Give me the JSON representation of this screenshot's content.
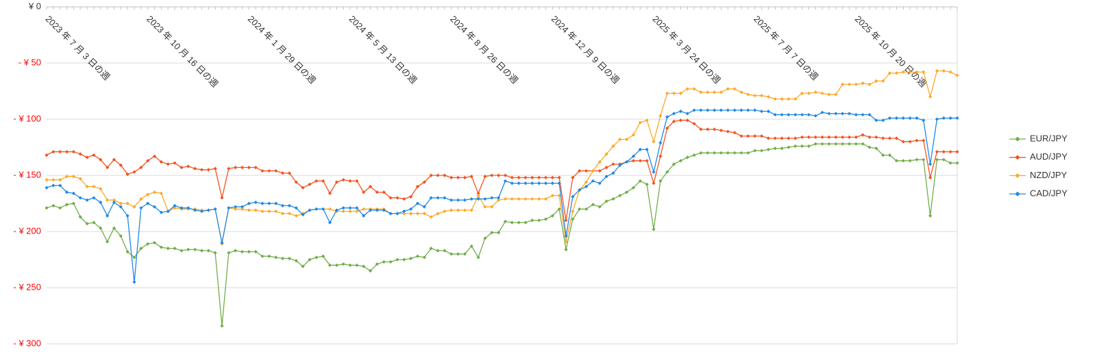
{
  "chart_data": {
    "type": "line",
    "categories": [
      "2023 年 7 月 3 日の週",
      null,
      null,
      null,
      null,
      null,
      null,
      null,
      null,
      null,
      null,
      null,
      null,
      null,
      null,
      "2023 年 10 月 16 日の週",
      null,
      null,
      null,
      null,
      null,
      null,
      null,
      null,
      null,
      null,
      null,
      null,
      null,
      null,
      "2024 年 1 月 29 日の週",
      null,
      null,
      null,
      null,
      null,
      null,
      null,
      null,
      null,
      null,
      null,
      null,
      null,
      null,
      "2024 年 5 月 13 日の週",
      null,
      null,
      null,
      null,
      null,
      null,
      null,
      null,
      null,
      null,
      null,
      null,
      null,
      null,
      "2024 年 8 月 26 日の週",
      null,
      null,
      null,
      null,
      null,
      null,
      null,
      null,
      null,
      null,
      null,
      null,
      null,
      null,
      "2024 年 12 月 9 日の週",
      null,
      null,
      null,
      null,
      null,
      null,
      null,
      null,
      null,
      null,
      null,
      null,
      null,
      null,
      "2025 年 3 月 24 日の週",
      null,
      null,
      null,
      null,
      null,
      null,
      null,
      null,
      null,
      null,
      null,
      null,
      null,
      null,
      "2025 年 7 月 7 日の週",
      null,
      null,
      null,
      null,
      null,
      null,
      null,
      null,
      null,
      null,
      null,
      null,
      null,
      null,
      "2025 年 10 月 20 日の週",
      null,
      null,
      null,
      null,
      null,
      null,
      null,
      null,
      null,
      null,
      null,
      null,
      null,
      null,
      null
    ],
    "series": [
      {
        "name": "EUR/JPY",
        "color": "#70ad47",
        "values": [
          -179,
          -177,
          -179,
          -176,
          -175,
          -187,
          -193,
          -192,
          -197,
          -209,
          -197,
          -204,
          -218,
          -223,
          -215,
          -211,
          -210,
          -214,
          -215,
          -215,
          -217,
          -216,
          -216,
          -217,
          -217,
          -219,
          -284,
          -219,
          -217,
          -218,
          -218,
          -218,
          -222,
          -222,
          -223,
          -224,
          -224,
          -226,
          -231,
          -225,
          -223,
          -222,
          -230,
          -230,
          -229,
          -230,
          -230,
          -231,
          -235,
          -229,
          -227,
          -227,
          -225,
          -225,
          -224,
          -222,
          -223,
          -215,
          -217,
          -217,
          -220,
          -220,
          -220,
          -213,
          -223,
          -206,
          -201,
          -201,
          -191,
          -192,
          -192,
          -192,
          -190,
          -190,
          -189,
          -186,
          -180,
          -216,
          -189,
          -180,
          -180,
          -176,
          -178,
          -173,
          -171,
          -168,
          -165,
          -161,
          -155,
          -158,
          -198,
          -155,
          -147,
          -140,
          -137,
          -134,
          -132,
          -130,
          -130,
          -130,
          -130,
          -130,
          -130,
          -130,
          -130,
          -128,
          -128,
          -127,
          -126,
          -126,
          -125,
          -124,
          -124,
          -124,
          -122,
          -122,
          -122,
          -122,
          -122,
          -122,
          -122,
          -122,
          -125,
          -126,
          -132,
          -132,
          -137,
          -137,
          -137,
          -136,
          -136,
          -186,
          -136,
          -136,
          -139,
          -139
        ]
      },
      {
        "name": "AUD/JPY",
        "color": "#f4511e",
        "values": [
          -132,
          -129,
          -129,
          -129,
          -129,
          -131,
          -134,
          -132,
          -136,
          -143,
          -136,
          -141,
          -149,
          -147,
          -143,
          -137,
          -133,
          -138,
          -140,
          -139,
          -143,
          -142,
          -144,
          -145,
          -145,
          -144,
          -170,
          -144,
          -143,
          -143,
          -143,
          -143,
          -146,
          -146,
          -146,
          -148,
          -148,
          -156,
          -161,
          -158,
          -155,
          -155,
          -166,
          -156,
          -154,
          -155,
          -155,
          -165,
          -160,
          -165,
          -165,
          -170,
          -170,
          -171,
          -169,
          -160,
          -156,
          -150,
          -150,
          -150,
          -152,
          -152,
          -152,
          -151,
          -166,
          -151,
          -150,
          -150,
          -150,
          -152,
          -152,
          -152,
          -152,
          -152,
          -152,
          -152,
          -152,
          -190,
          -152,
          -146,
          -146,
          -146,
          -146,
          -143,
          -140,
          -140,
          -138,
          -137,
          -137,
          -137,
          -157,
          -133,
          -108,
          -102,
          -101,
          -101,
          -104,
          -109,
          -109,
          -109,
          -110,
          -111,
          -112,
          -115,
          -115,
          -115,
          -115,
          -117,
          -117,
          -117,
          -117,
          -117,
          -116,
          -116,
          -116,
          -116,
          -116,
          -116,
          -116,
          -116,
          -116,
          -114,
          -116,
          -116,
          -117,
          -117,
          -117,
          -120,
          -120,
          -119,
          -119,
          -152,
          -129,
          -129,
          -129,
          -129
        ]
      },
      {
        "name": "NZD/JPY",
        "color": "#ffa726",
        "values": [
          -154,
          -154,
          -154,
          -151,
          -151,
          -153,
          -160,
          -160,
          -162,
          -172,
          -172,
          -175,
          -175,
          -178,
          -171,
          -167,
          -165,
          -166,
          -182,
          -179,
          -180,
          -180,
          -180,
          -181,
          -181,
          -180,
          -211,
          -179,
          -180,
          -180,
          -181,
          -181,
          -182,
          -182,
          -182,
          -184,
          -184,
          -186,
          -184,
          -181,
          -180,
          -180,
          -180,
          -182,
          -182,
          -182,
          -182,
          -180,
          -180,
          -180,
          -180,
          -184,
          -184,
          -184,
          -184,
          -184,
          -184,
          -187,
          -184,
          -182,
          -181,
          -181,
          -181,
          -181,
          -168,
          -178,
          -178,
          -172,
          -171,
          -171,
          -171,
          -171,
          -171,
          -171,
          -171,
          -168,
          -168,
          -209,
          -182,
          -163,
          -156,
          -146,
          -138,
          -131,
          -124,
          -118,
          -118,
          -114,
          -103,
          -101,
          -120,
          -97,
          -77,
          -77,
          -77,
          -73,
          -73,
          -76,
          -76,
          -76,
          -76,
          -73,
          -73,
          -76,
          -78,
          -79,
          -79,
          -80,
          -82,
          -82,
          -82,
          -82,
          -77,
          -77,
          -76,
          -77,
          -78,
          -78,
          -69,
          -69,
          -69,
          -68,
          -69,
          -66,
          -66,
          -59,
          -59,
          -58,
          -58,
          -58,
          -58,
          -80,
          -57,
          -57,
          -58,
          -61
        ]
      },
      {
        "name": "CAD/JPY",
        "color": "#1e88e5",
        "values": [
          -161,
          -159,
          -159,
          -165,
          -166,
          -170,
          -172,
          -170,
          -174,
          -186,
          -174,
          -178,
          -186,
          -245,
          -179,
          -175,
          -178,
          -183,
          -182,
          -177,
          -179,
          -179,
          -181,
          -182,
          -181,
          -180,
          -210,
          -179,
          -178,
          -178,
          -175,
          -174,
          -175,
          -175,
          -175,
          -177,
          -177,
          -179,
          -185,
          -181,
          -180,
          -180,
          -192,
          -181,
          -179,
          -179,
          -179,
          -186,
          -181,
          -181,
          -181,
          -184,
          -184,
          -182,
          -180,
          -175,
          -178,
          -170,
          -170,
          -170,
          -172,
          -172,
          -172,
          -171,
          -171,
          -171,
          -170,
          -170,
          -155,
          -157,
          -157,
          -157,
          -157,
          -157,
          -157,
          -157,
          -157,
          -204,
          -169,
          -163,
          -160,
          -155,
          -157,
          -151,
          -148,
          -141,
          -138,
          -133,
          -127,
          -127,
          -147,
          -121,
          -98,
          -95,
          -93,
          -95,
          -92,
          -92,
          -92,
          -92,
          -92,
          -92,
          -92,
          -92,
          -92,
          -92,
          -93,
          -93,
          -96,
          -96,
          -96,
          -96,
          -96,
          -96,
          -97,
          -94,
          -95,
          -95,
          -95,
          -95,
          -96,
          -96,
          -96,
          -101,
          -101,
          -99,
          -99,
          -99,
          -99,
          -99,
          -101,
          -140,
          -100,
          -99,
          -99,
          -99
        ]
      }
    ],
    "ylim": [
      -300,
      0
    ],
    "yticks": [
      {
        "value": 0,
        "label": "¥ 0"
      },
      {
        "value": -50,
        "label": "- ¥ 50"
      },
      {
        "value": -100,
        "label": "- ¥ 100"
      },
      {
        "value": -150,
        "label": "- ¥ 150"
      },
      {
        "value": -200,
        "label": "- ¥ 200"
      },
      {
        "value": -250,
        "label": "- ¥ 250"
      },
      {
        "value": -300,
        "label": "- ¥ 300"
      }
    ],
    "negative_color": "#ff0000",
    "grid": true,
    "legend": "right"
  }
}
